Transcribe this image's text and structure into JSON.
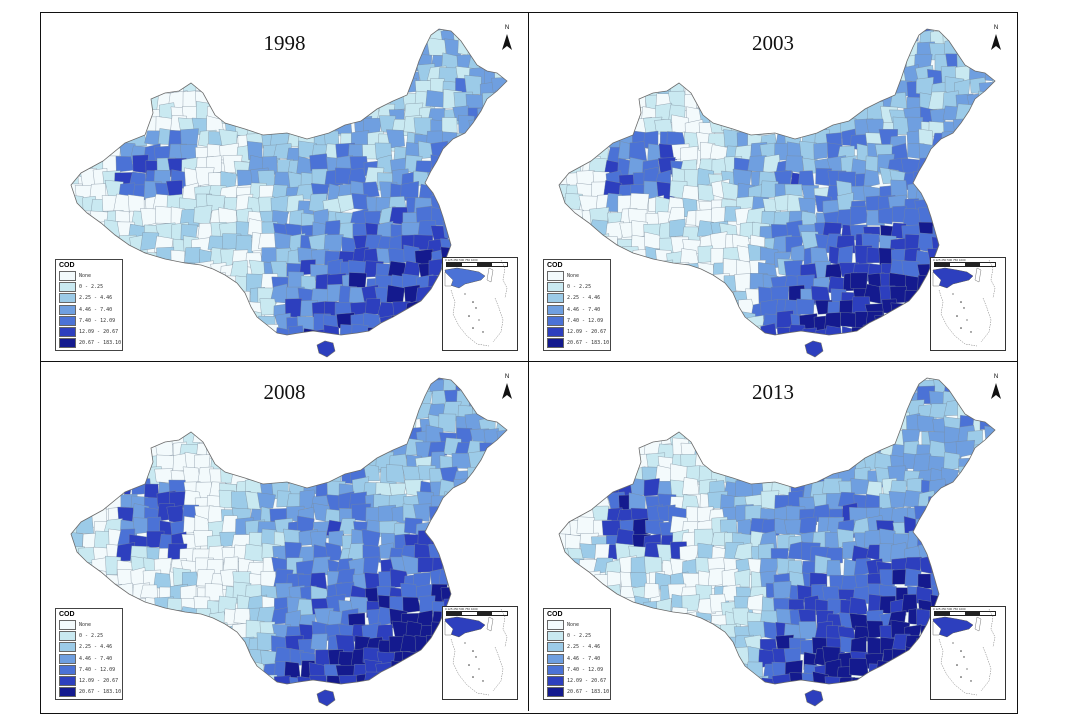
{
  "panels": [
    {
      "year": "1998",
      "intensity": 0.55
    },
    {
      "year": "2003",
      "intensity": 0.72
    },
    {
      "year": "2008",
      "intensity": 0.78
    },
    {
      "year": "2013",
      "intensity": 0.82
    }
  ],
  "legend": {
    "title": "COD",
    "classes": [
      {
        "label": "None",
        "color": "#f3fafc"
      },
      {
        "label": "0 - 2.25",
        "color": "#c9e9f1"
      },
      {
        "label": "2.25 - 4.46",
        "color": "#9ccbe8"
      },
      {
        "label": "4.46 - 7.40",
        "color": "#6f9fe0"
      },
      {
        "label": "7.40 - 12.09",
        "color": "#4b72d6"
      },
      {
        "label": "12.09 - 20.67",
        "color": "#2d3fbe"
      },
      {
        "label": "20.67 - 183.10",
        "color": "#141a8e"
      }
    ]
  },
  "north_label": "N",
  "scale_label": "0  125 250   500    750   1000"
}
